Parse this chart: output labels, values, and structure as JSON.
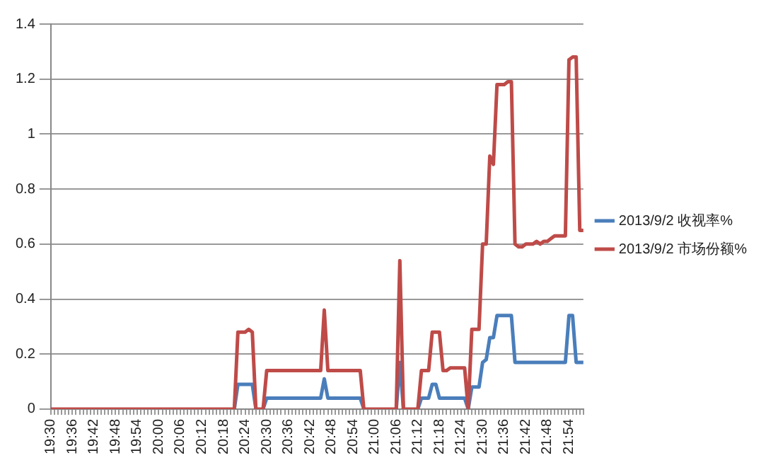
{
  "chart_data": {
    "type": "line",
    "categories": [
      "19:30",
      null,
      null,
      null,
      null,
      null,
      "19:36",
      null,
      null,
      null,
      null,
      null,
      "19:42",
      null,
      null,
      null,
      null,
      null,
      "19:48",
      null,
      null,
      null,
      null,
      null,
      "19:54",
      null,
      null,
      null,
      null,
      null,
      "20:00",
      null,
      null,
      null,
      null,
      null,
      "20:06",
      null,
      null,
      null,
      null,
      null,
      "20:12",
      null,
      null,
      null,
      null,
      null,
      "20:18",
      null,
      null,
      null,
      null,
      null,
      "20:24",
      null,
      null,
      null,
      null,
      null,
      "20:30",
      null,
      null,
      null,
      null,
      null,
      "20:36",
      null,
      null,
      null,
      null,
      null,
      "20:42",
      null,
      null,
      null,
      null,
      null,
      "20:48",
      null,
      null,
      null,
      null,
      null,
      "20:54",
      null,
      null,
      null,
      null,
      null,
      "21:00",
      null,
      null,
      null,
      null,
      null,
      "21:06",
      null,
      null,
      null,
      null,
      null,
      "21:12",
      null,
      null,
      null,
      null,
      null,
      "21:18",
      null,
      null,
      null,
      null,
      null,
      "21:24",
      null,
      null,
      null,
      null,
      null,
      "21:30",
      null,
      null,
      null,
      null,
      null,
      "21:36",
      null,
      null,
      null,
      null,
      null,
      "21:42",
      null,
      null,
      null,
      null,
      null,
      "21:48",
      null,
      null,
      null,
      null,
      null,
      "21:54",
      null,
      null,
      null,
      null
    ],
    "series": [
      {
        "name": "2013/9/2 收视率%",
        "color": "#4a7ebb",
        "values": [
          null,
          null,
          null,
          null,
          null,
          null,
          null,
          null,
          null,
          null,
          null,
          null,
          null,
          null,
          null,
          null,
          null,
          null,
          null,
          null,
          null,
          null,
          null,
          null,
          null,
          null,
          null,
          null,
          null,
          null,
          null,
          null,
          null,
          null,
          null,
          null,
          null,
          null,
          null,
          null,
          null,
          null,
          null,
          null,
          null,
          null,
          null,
          null,
          null,
          null,
          null,
          0,
          0.09,
          0.09,
          0.09,
          0.09,
          0.09,
          0,
          null,
          0,
          0.04,
          0.04,
          0.04,
          0.04,
          0.04,
          0.04,
          0.04,
          0.04,
          0.04,
          0.04,
          0.04,
          0.04,
          0.04,
          0.04,
          0.04,
          0.04,
          0.11,
          0.04,
          0.04,
          0.04,
          0.04,
          0.04,
          0.04,
          0.04,
          0.04,
          0.04,
          0.04,
          0,
          null,
          null,
          null,
          null,
          null,
          null,
          null,
          null,
          0,
          0.17,
          0,
          null,
          null,
          null,
          0,
          0.04,
          0.04,
          0.04,
          0.09,
          0.09,
          0.04,
          0.04,
          0.04,
          0.04,
          0.04,
          0.04,
          0.04,
          0.04,
          0,
          0.08,
          0.08,
          0.08,
          0.17,
          0.18,
          0.26,
          0.26,
          0.34,
          0.34,
          0.34,
          0.34,
          0.34,
          0.17,
          0.17,
          0.17,
          0.17,
          0.17,
          0.17,
          0.17,
          0.17,
          0.17,
          0.17,
          0.17,
          0.17,
          0.17,
          0.17,
          0.17,
          0.34,
          0.34,
          0.17,
          0.17,
          0.17
        ]
      },
      {
        "name": "2013/9/2 市场份额%",
        "color": "#be4b48",
        "values": [
          0,
          0,
          0,
          0,
          0,
          0,
          0,
          0,
          0,
          0,
          0,
          0,
          0,
          0,
          0,
          0,
          0,
          0,
          0,
          0,
          0,
          0,
          0,
          0,
          0,
          0,
          0,
          0,
          0,
          0,
          0,
          0,
          0,
          0,
          0,
          0,
          0,
          0,
          0,
          0,
          0,
          0,
          0,
          0,
          0,
          0,
          0,
          0,
          0,
          0,
          0,
          0,
          0.28,
          0.28,
          0.28,
          0.29,
          0.28,
          0,
          0,
          0,
          0.14,
          0.14,
          0.14,
          0.14,
          0.14,
          0.14,
          0.14,
          0.14,
          0.14,
          0.14,
          0.14,
          0.14,
          0.14,
          0.14,
          0.14,
          0.14,
          0.36,
          0.14,
          0.14,
          0.14,
          0.14,
          0.14,
          0.14,
          0.14,
          0.14,
          0.14,
          0.14,
          0,
          0,
          0,
          0,
          0,
          0,
          0,
          0,
          0,
          0,
          0.54,
          0,
          0,
          0,
          0,
          0,
          0.14,
          0.14,
          0.14,
          0.28,
          0.28,
          0.28,
          0.14,
          0.14,
          0.15,
          0.15,
          0.15,
          0.15,
          0.15,
          0,
          0.29,
          0.29,
          0.29,
          0.6,
          0.6,
          0.92,
          0.89,
          1.18,
          1.18,
          1.18,
          1.19,
          1.19,
          0.6,
          0.59,
          0.59,
          0.6,
          0.6,
          0.6,
          0.61,
          0.6,
          0.61,
          0.61,
          0.62,
          0.63,
          0.63,
          0.63,
          0.63,
          1.27,
          1.28,
          1.28,
          0.65,
          0.65
        ]
      }
    ],
    "ylim": [
      0,
      1.4
    ],
    "yticks": [
      0,
      0.2,
      0.4,
      0.6,
      0.8,
      1,
      1.2,
      1.4
    ],
    "grid": "y",
    "legend": "right",
    "marker": "none",
    "line_style": "solid"
  }
}
